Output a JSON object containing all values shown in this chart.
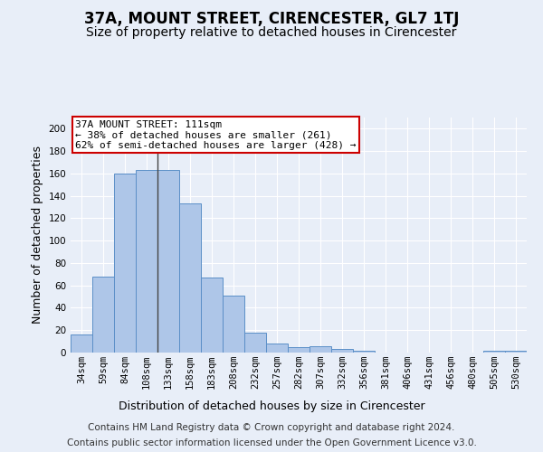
{
  "title": "37A, MOUNT STREET, CIRENCESTER, GL7 1TJ",
  "subtitle": "Size of property relative to detached houses in Cirencester",
  "xlabel": "Distribution of detached houses by size in Cirencester",
  "ylabel": "Number of detached properties",
  "categories": [
    "34sqm",
    "59sqm",
    "84sqm",
    "108sqm",
    "133sqm",
    "158sqm",
    "183sqm",
    "208sqm",
    "232sqm",
    "257sqm",
    "282sqm",
    "307sqm",
    "332sqm",
    "356sqm",
    "381sqm",
    "406sqm",
    "431sqm",
    "456sqm",
    "480sqm",
    "505sqm",
    "530sqm"
  ],
  "values": [
    16,
    68,
    160,
    163,
    163,
    133,
    67,
    51,
    18,
    8,
    5,
    6,
    3,
    2,
    0,
    0,
    0,
    0,
    0,
    2,
    2
  ],
  "bar_color": "#aec6e8",
  "bar_edge_color": "#5b8fc7",
  "annotation_title": "37A MOUNT STREET: 111sqm",
  "annotation_line1": "← 38% of detached houses are smaller (261)",
  "annotation_line2": "62% of semi-detached houses are larger (428) →",
  "annotation_box_facecolor": "#ffffff",
  "annotation_box_edgecolor": "#cc0000",
  "ylim": [
    0,
    210
  ],
  "yticks": [
    0,
    20,
    40,
    60,
    80,
    100,
    120,
    140,
    160,
    180,
    200
  ],
  "background_color": "#e8eef8",
  "footer_line1": "Contains HM Land Registry data © Crown copyright and database right 2024.",
  "footer_line2": "Contains public sector information licensed under the Open Government Licence v3.0.",
  "title_fontsize": 12,
  "subtitle_fontsize": 10,
  "axis_label_fontsize": 9,
  "tick_fontsize": 7.5,
  "annotation_fontsize": 8,
  "footer_fontsize": 7.5,
  "vline_x_index": 3.5
}
